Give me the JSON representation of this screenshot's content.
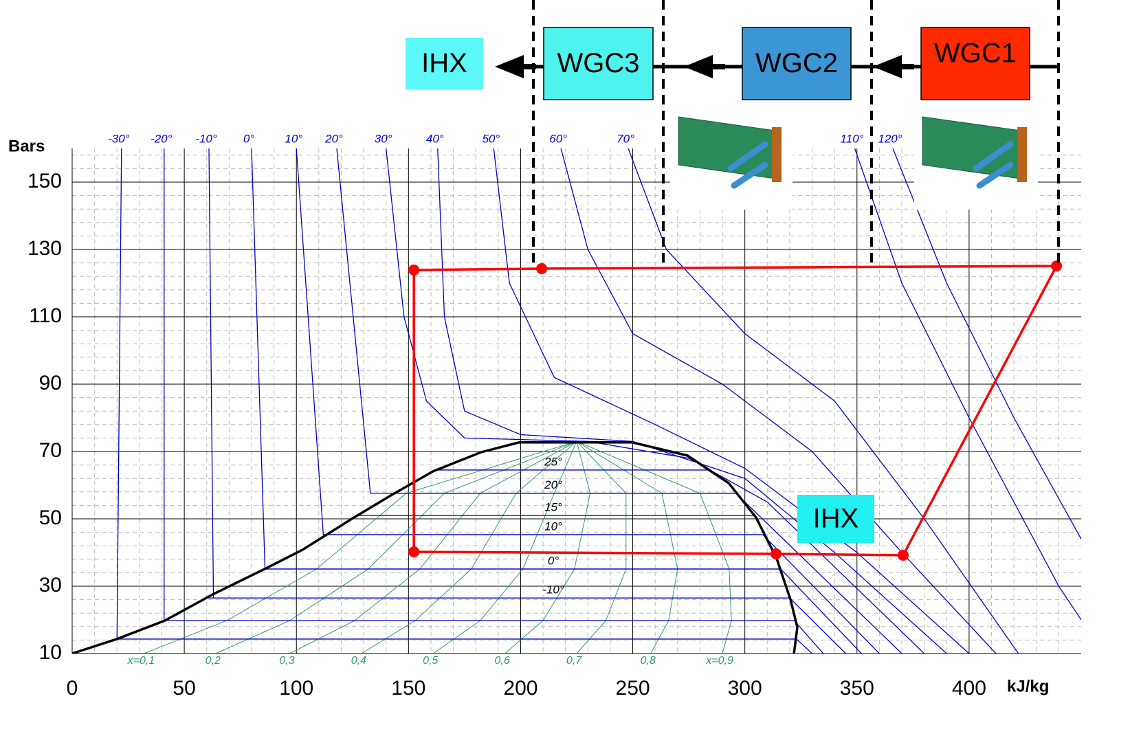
{
  "chart_data": {
    "type": "line",
    "y_axis_label": "Bars",
    "x_axis_label": "kJ/kg",
    "xlim": [
      0,
      450
    ],
    "ylim": [
      10,
      160
    ],
    "xticks": [
      0,
      50,
      100,
      150,
      200,
      250,
      300,
      350,
      400
    ],
    "yticks": [
      10,
      30,
      50,
      70,
      90,
      110,
      130,
      150
    ],
    "grid": true,
    "series": [
      {
        "color": "#000000",
        "x": [
          0,
          19.9,
          41.4,
          62.8,
          85.8,
          102.7,
          125.7,
          142.5,
          160.9,
          182.4,
          199.3,
          249.8,
          274.4,
          292.8,
          305.0,
          314.2,
          320.4,
          323.4,
          321.9
        ],
        "y": [
          10,
          14.3,
          19.8,
          27.6,
          35.1,
          40.8,
          50.4,
          57.1,
          64.1,
          69.8,
          72.7,
          72.7,
          68.8,
          60.6,
          50.4,
          38.2,
          25.9,
          17.8,
          10
        ]
      },
      {
        "color": "#ff0000",
        "closed": true,
        "markers": true,
        "x": [
          152.4,
          209.4,
          439,
          370.6,
          313.9,
          152.4
        ],
        "y": [
          123.9,
          124.3,
          125.1,
          39.2,
          39.6,
          40.2
        ]
      }
    ],
    "isotherm_color": "#0000cc",
    "isotherms": [
      {
        "label": "-30°",
        "x": [
          22,
          20,
          323,
          330
        ],
        "y": [
          160,
          14.3,
          14.3,
          10
        ]
      },
      {
        "label": "-20°",
        "x": [
          41,
          41,
          322,
          335
        ],
        "y": [
          160,
          19.8,
          19.8,
          10
        ]
      },
      {
        "label": "-10°",
        "x": [
          61,
          63,
          320,
          345
        ],
        "y": [
          160,
          26.5,
          26.5,
          10
        ]
      },
      {
        "label": "0°",
        "x": [
          80,
          86,
          316,
          352
        ],
        "y": [
          160,
          35.1,
          35.1,
          10
        ]
      },
      {
        "label": "10°",
        "x": [
          100,
          112,
          308,
          360
        ],
        "y": [
          160,
          45.3,
          45.3,
          10
        ]
      },
      {
        "label": "20°",
        "x": [
          118,
          133,
          296,
          370
        ],
        "y": [
          160,
          57.6,
          57.6,
          10
        ]
      },
      {
        "label": "30°",
        "x": [
          140,
          148,
          158,
          175,
          230,
          275,
          310,
          380
        ],
        "y": [
          160,
          110,
          85,
          74,
          73,
          68,
          55,
          10
        ]
      },
      {
        "label": "40°",
        "x": [
          163,
          166,
          175,
          200,
          250,
          300,
          340,
          390
        ],
        "y": [
          160,
          110,
          82,
          75,
          73,
          62,
          40,
          10
        ]
      },
      {
        "label": "50°",
        "x": [
          188,
          195,
          215,
          260,
          300,
          350,
          400
        ],
        "y": [
          160,
          120,
          92,
          78,
          65,
          40,
          10
        ]
      },
      {
        "label": "60°",
        "x": [
          218,
          230,
          250,
          290,
          330,
          370,
          412
        ],
        "y": [
          160,
          130,
          105,
          90,
          70,
          40,
          10
        ]
      },
      {
        "label": "70°",
        "x": [
          248,
          265,
          300,
          340,
          380,
          422
        ],
        "y": [
          160,
          130,
          105,
          85,
          50,
          10
        ]
      },
      {
        "label": "110°",
        "x": [
          349,
          370,
          400,
          440,
          450
        ],
        "y": [
          160,
          120,
          80,
          30,
          20
        ]
      },
      {
        "label": "120°",
        "x": [
          366,
          390,
          420,
          450
        ],
        "y": [
          160,
          120,
          80,
          44
        ]
      }
    ],
    "quality_color": "#2e9a6a",
    "quality_lines": [
      {
        "label": "x=0,1",
        "x": [
          32,
          69,
          109,
          149,
          225
        ],
        "y": [
          10,
          19.8,
          35.1,
          57.6,
          73
        ]
      },
      {
        "label": "0,2",
        "x": [
          64,
          97,
          132,
          166,
          225
        ],
        "y": [
          10,
          19.8,
          35.1,
          57.6,
          73
        ]
      },
      {
        "label": "0,3",
        "x": [
          97,
          126,
          155,
          182,
          225
        ],
        "y": [
          10,
          19.8,
          35.1,
          57.6,
          73
        ]
      },
      {
        "label": "0,4",
        "x": [
          129,
          153,
          178,
          198,
          225
        ],
        "y": [
          10,
          19.8,
          35.1,
          57.6,
          73
        ]
      },
      {
        "label": "0,5",
        "x": [
          161,
          182,
          201,
          215,
          225
        ],
        "y": [
          10,
          19.8,
          35.1,
          57.6,
          73
        ]
      },
      {
        "label": "0,6",
        "x": [
          193,
          210,
          224,
          231,
          225
        ],
        "y": [
          10,
          19.8,
          35.1,
          57.6,
          73
        ]
      },
      {
        "label": "0,7",
        "x": [
          225,
          238,
          247,
          247,
          225
        ],
        "y": [
          10,
          19.8,
          35.1,
          57.6,
          73
        ]
      },
      {
        "label": "0,8",
        "x": [
          258,
          266,
          270,
          263,
          225
        ],
        "y": [
          10,
          19.8,
          35.1,
          57.6,
          73
        ]
      },
      {
        "label": "x=0,9",
        "x": [
          290,
          294,
          293,
          280,
          225
        ],
        "y": [
          10,
          19.8,
          35.1,
          57.6,
          73
        ]
      }
    ],
    "dome_isotherms": [
      {
        "label": "25°",
        "value": 64.5
      },
      {
        "label": "20°",
        "value": 57.6
      },
      {
        "label": "15°",
        "value": 51
      },
      {
        "label": "10°",
        "value": 45.3
      },
      {
        "label": "0°",
        "value": 35.1
      },
      {
        "label": "-10°",
        "value": 26.5
      }
    ]
  },
  "diagram": {
    "boxes": [
      {
        "label": "IHX",
        "color": "#5cf7f7"
      },
      {
        "label": "WGC3",
        "color": "#4ef3ee"
      },
      {
        "label": "WGC2",
        "color": "#3c96d4"
      },
      {
        "label": "WGC1",
        "color": "#ff2a00"
      }
    ],
    "plot_box": {
      "label": "IHX",
      "color": "#22f0f0"
    }
  }
}
